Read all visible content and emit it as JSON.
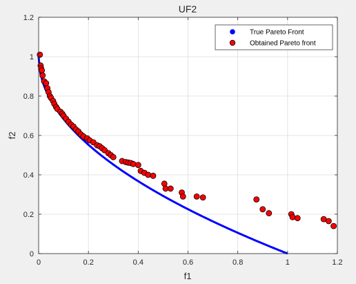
{
  "chart_data": {
    "type": "scatter",
    "title": "UF2",
    "xlabel": "f1",
    "ylabel": "f2",
    "xlim": [
      0,
      1.2
    ],
    "ylim": [
      0,
      1.2
    ],
    "xticks": [
      "0",
      "0.2",
      "0.4",
      "0.6",
      "0.8",
      "1",
      "1.2"
    ],
    "yticks": [
      "0",
      "0.2",
      "0.4",
      "0.6",
      "0.8",
      "1",
      "1.2"
    ],
    "grid": true,
    "legend_position": "top-right",
    "series": [
      {
        "name": "True Pareto Front",
        "kind": "line",
        "color": "#0000ff",
        "function": "f2 = 1 - sqrt(f1)",
        "x_range": [
          0,
          1
        ]
      },
      {
        "name": "Obtained Pareto front",
        "kind": "scatter",
        "color": "#ff0000",
        "edge_color": "#000000",
        "points": [
          [
            0.005,
            1.01
          ],
          [
            0.008,
            0.955
          ],
          [
            0.01,
            0.94
          ],
          [
            0.013,
            0.93
          ],
          [
            0.016,
            0.905
          ],
          [
            0.022,
            0.875
          ],
          [
            0.03,
            0.865
          ],
          [
            0.035,
            0.84
          ],
          [
            0.04,
            0.82
          ],
          [
            0.045,
            0.8
          ],
          [
            0.05,
            0.79
          ],
          [
            0.058,
            0.775
          ],
          [
            0.063,
            0.76
          ],
          [
            0.07,
            0.745
          ],
          [
            0.075,
            0.735
          ],
          [
            0.088,
            0.72
          ],
          [
            0.095,
            0.71
          ],
          [
            0.1,
            0.7
          ],
          [
            0.11,
            0.685
          ],
          [
            0.12,
            0.67
          ],
          [
            0.13,
            0.655
          ],
          [
            0.14,
            0.645
          ],
          [
            0.15,
            0.63
          ],
          [
            0.16,
            0.62
          ],
          [
            0.17,
            0.605
          ],
          [
            0.18,
            0.595
          ],
          [
            0.195,
            0.585
          ],
          [
            0.205,
            0.575
          ],
          [
            0.22,
            0.565
          ],
          [
            0.235,
            0.55
          ],
          [
            0.245,
            0.545
          ],
          [
            0.255,
            0.535
          ],
          [
            0.265,
            0.525
          ],
          [
            0.28,
            0.51
          ],
          [
            0.29,
            0.5
          ],
          [
            0.3,
            0.49
          ],
          [
            0.335,
            0.47
          ],
          [
            0.35,
            0.465
          ],
          [
            0.36,
            0.462
          ],
          [
            0.37,
            0.46
          ],
          [
            0.38,
            0.455
          ],
          [
            0.4,
            0.45
          ],
          [
            0.41,
            0.42
          ],
          [
            0.425,
            0.41
          ],
          [
            0.44,
            0.4
          ],
          [
            0.46,
            0.395
          ],
          [
            0.505,
            0.355
          ],
          [
            0.51,
            0.33
          ],
          [
            0.53,
            0.33
          ],
          [
            0.575,
            0.31
          ],
          [
            0.58,
            0.29
          ],
          [
            0.635,
            0.29
          ],
          [
            0.66,
            0.285
          ],
          [
            0.875,
            0.275
          ],
          [
            0.9,
            0.225
          ],
          [
            0.925,
            0.205
          ],
          [
            1.015,
            0.2
          ],
          [
            1.02,
            0.185
          ],
          [
            1.04,
            0.18
          ],
          [
            1.145,
            0.175
          ],
          [
            1.165,
            0.165
          ],
          [
            1.185,
            0.14
          ]
        ]
      }
    ]
  }
}
